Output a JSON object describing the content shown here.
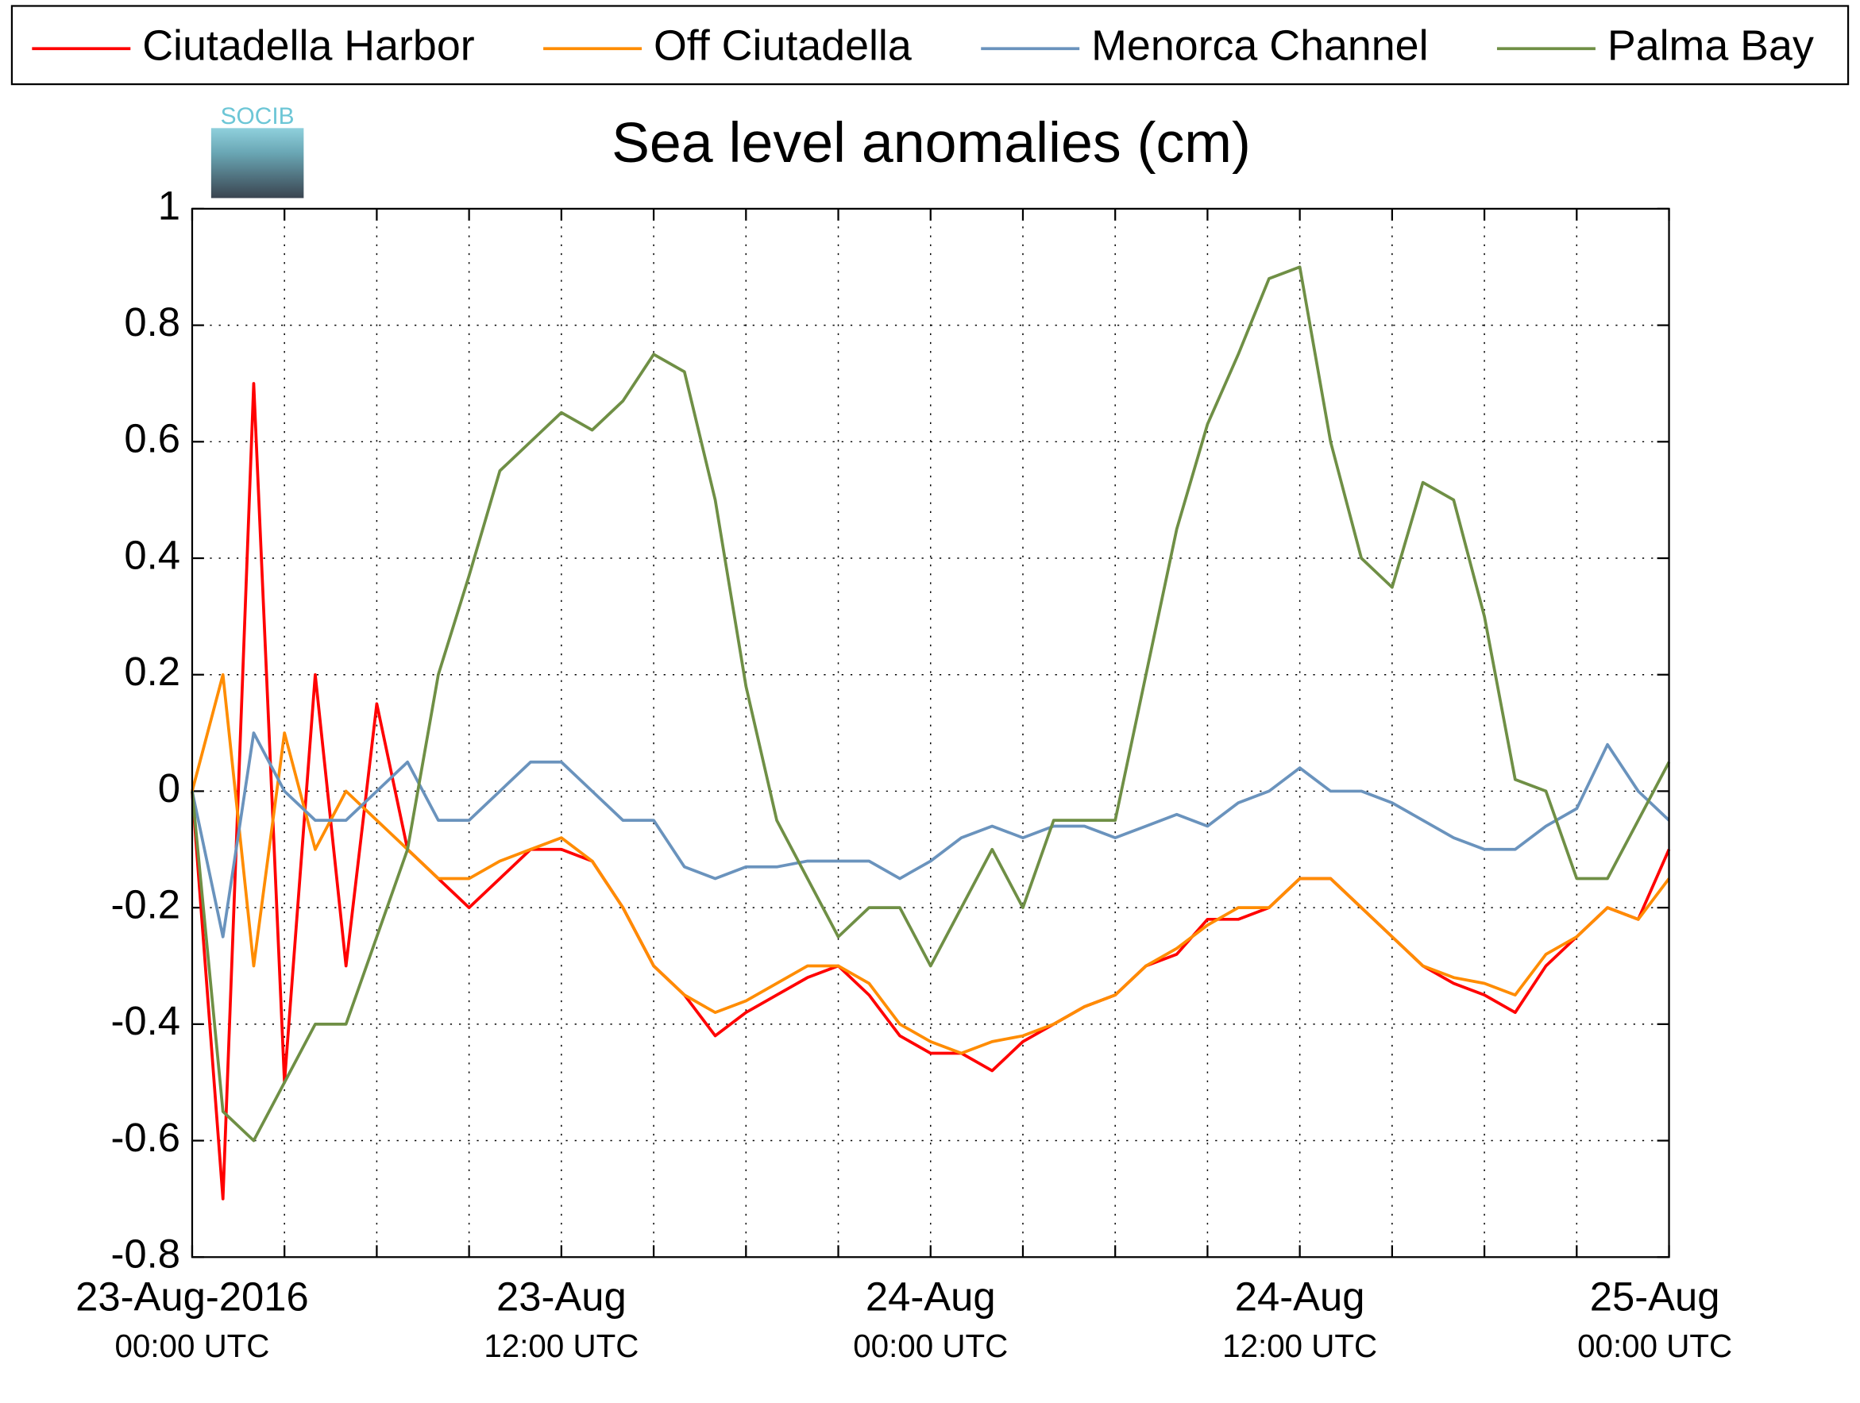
{
  "chart_data": {
    "type": "line",
    "title": "Sea level anomalies (cm)",
    "logo_text": "SOCIB",
    "x": [
      0,
      1,
      2,
      3,
      4,
      5,
      6,
      7,
      8,
      9,
      10,
      11,
      12,
      13,
      14,
      15,
      16,
      17,
      18,
      19,
      20,
      21,
      22,
      23,
      24,
      25,
      26,
      27,
      28,
      29,
      30,
      31,
      32,
      33,
      34,
      35,
      36,
      37,
      38,
      39,
      40,
      41,
      42,
      43,
      44,
      45,
      46,
      47,
      48
    ],
    "series": [
      {
        "name": "Ciutadella Harbor",
        "color": "#ff0000",
        "values": [
          0.0,
          -0.7,
          0.7,
          -0.5,
          0.2,
          -0.3,
          0.15,
          -0.1,
          -0.15,
          -0.2,
          -0.15,
          -0.1,
          -0.1,
          -0.12,
          -0.2,
          -0.3,
          -0.35,
          -0.42,
          -0.38,
          -0.35,
          -0.32,
          -0.3,
          -0.35,
          -0.42,
          -0.45,
          -0.45,
          -0.48,
          -0.43,
          -0.4,
          -0.37,
          -0.35,
          -0.3,
          -0.28,
          -0.22,
          -0.22,
          -0.2,
          -0.15,
          -0.15,
          -0.2,
          -0.25,
          -0.3,
          -0.33,
          -0.35,
          -0.38,
          -0.3,
          -0.25,
          -0.2,
          -0.22,
          -0.1
        ]
      },
      {
        "name": "Off Ciutadella",
        "color": "#ff8c00",
        "values": [
          0.0,
          0.2,
          -0.3,
          0.1,
          -0.1,
          0.0,
          -0.05,
          -0.1,
          -0.15,
          -0.15,
          -0.12,
          -0.1,
          -0.08,
          -0.12,
          -0.2,
          -0.3,
          -0.35,
          -0.38,
          -0.36,
          -0.33,
          -0.3,
          -0.3,
          -0.33,
          -0.4,
          -0.43,
          -0.45,
          -0.43,
          -0.42,
          -0.4,
          -0.37,
          -0.35,
          -0.3,
          -0.27,
          -0.23,
          -0.2,
          -0.2,
          -0.15,
          -0.15,
          -0.2,
          -0.25,
          -0.3,
          -0.32,
          -0.33,
          -0.35,
          -0.28,
          -0.25,
          -0.2,
          -0.22,
          -0.15
        ]
      },
      {
        "name": "Menorca Channel",
        "color": "#6a93bd",
        "values": [
          0.0,
          -0.25,
          0.1,
          0.0,
          -0.05,
          -0.05,
          0.0,
          0.05,
          -0.05,
          -0.05,
          0.0,
          0.05,
          0.05,
          0.0,
          -0.05,
          -0.05,
          -0.13,
          -0.15,
          -0.13,
          -0.13,
          -0.12,
          -0.12,
          -0.12,
          -0.15,
          -0.12,
          -0.08,
          -0.06,
          -0.08,
          -0.06,
          -0.06,
          -0.08,
          -0.06,
          -0.04,
          -0.06,
          -0.02,
          0.0,
          0.04,
          0.0,
          0.0,
          -0.02,
          -0.05,
          -0.08,
          -0.1,
          -0.1,
          -0.06,
          -0.03,
          0.08,
          0.0,
          -0.05
        ]
      },
      {
        "name": "Palma Bay",
        "color": "#6f8f45",
        "values": [
          0.0,
          -0.55,
          -0.6,
          -0.5,
          -0.4,
          -0.4,
          -0.25,
          -0.1,
          0.2,
          0.37,
          0.55,
          0.6,
          0.65,
          0.62,
          0.67,
          0.75,
          0.72,
          0.5,
          0.18,
          -0.05,
          -0.15,
          -0.25,
          -0.2,
          -0.2,
          -0.3,
          -0.2,
          -0.1,
          -0.2,
          -0.05,
          -0.05,
          -0.05,
          0.2,
          0.45,
          0.63,
          0.75,
          0.88,
          0.9,
          0.6,
          0.4,
          0.35,
          0.53,
          0.5,
          0.3,
          0.02,
          0.0,
          -0.15,
          -0.15,
          -0.05,
          0.05
        ]
      }
    ],
    "xlim": [
      0,
      48
    ],
    "xticks": [
      {
        "value": 0,
        "label": [
          "23-Aug-2016",
          "00:00 UTC"
        ]
      },
      {
        "value": 12,
        "label": [
          "23-Aug",
          "12:00 UTC"
        ]
      },
      {
        "value": 24,
        "label": [
          "24-Aug",
          "00:00 UTC"
        ]
      },
      {
        "value": 36,
        "label": [
          "24-Aug",
          "12:00 UTC"
        ]
      },
      {
        "value": 48,
        "label": [
          "25-Aug",
          "00:00 UTC"
        ]
      }
    ],
    "xminorticks": [
      3,
      6,
      9,
      15,
      18,
      21,
      27,
      30,
      33,
      39,
      42,
      45
    ],
    "ylim": [
      -0.8,
      1
    ],
    "yticks": [
      -0.8,
      -0.6,
      -0.4,
      -0.2,
      0,
      0.2,
      0.4,
      0.6,
      0.8,
      1
    ],
    "grid": true,
    "legend": "top"
  }
}
